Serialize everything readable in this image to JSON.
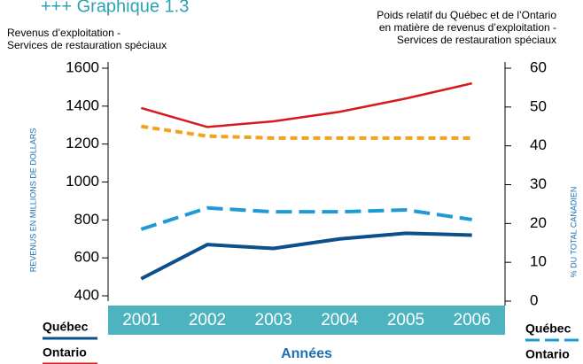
{
  "chart_data": {
    "type": "line",
    "title": "+++ Graphique 1.3",
    "subtitle_left": [
      "Revenus d’exploitation -",
      "Services de restauration spéciaux"
    ],
    "subtitle_right": [
      "Poids relatif du Québec et de l’Ontario",
      "en matière de revenus d’exploitation -",
      "Services de restauration spéciaux"
    ],
    "ylabel": "REVENUS EN MILLIONS DE DOLLARS",
    "y2label": "% DU TOTAL CANADIEN",
    "xlabel": "Années",
    "categories": [
      "2001",
      "2002",
      "2003",
      "2004",
      "2005",
      "2006"
    ],
    "ylim": [
      400,
      1600
    ],
    "yticks": [
      400,
      600,
      800,
      1000,
      1200,
      1400,
      1600
    ],
    "y2lim": [
      0,
      60
    ],
    "y2ticks": [
      0,
      10,
      20,
      30,
      40,
      50,
      60
    ],
    "series": [
      {
        "name": "Québec",
        "color": "#0d4f8b",
        "dashed": false,
        "values": [
          490,
          670,
          650,
          700,
          730,
          720
        ]
      },
      {
        "name": "Ontario",
        "color": "#d7191f",
        "dashed": false,
        "values": [
          1390,
          1290,
          1320,
          1370,
          1440,
          1520
        ]
      },
      {
        "name": "Québec",
        "color": "#1e9ad6",
        "dashed": true,
        "axis": "y2",
        "values": [
          18.5,
          24,
          23,
          23,
          23.5,
          21
        ]
      },
      {
        "name": "Ontario",
        "color": "#f4a11d",
        "dashed": true,
        "axis": "y2",
        "values": [
          45,
          42.5,
          42,
          42,
          42,
          42
        ]
      }
    ]
  }
}
